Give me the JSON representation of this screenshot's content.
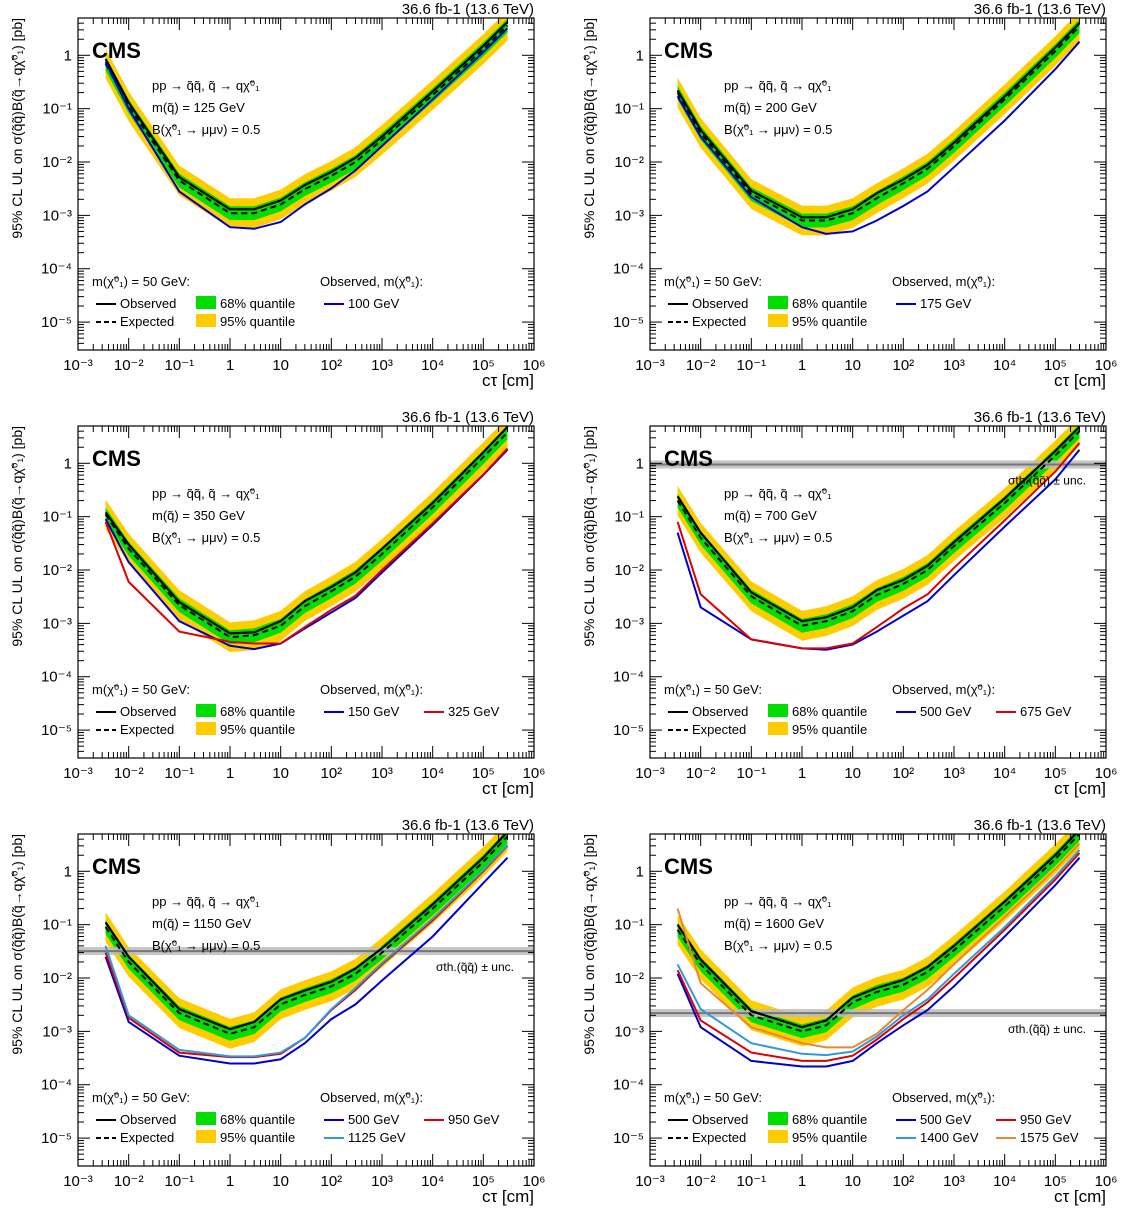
{
  "chart_data": [
    {
      "type": "line",
      "experiment_label": "CMS",
      "lumi_label": "36.6 fb-1 (13.6 TeV)",
      "ylabel": "95% CL UL on σ(q̃q̃)B(q̃→qχ̃⁰₁) [pb]",
      "xlabel": "cτ [cm]",
      "xscale": "log",
      "yscale": "log",
      "xlim": [
        0.001,
        1000000
      ],
      "ylim": [
        3e-06,
        5
      ],
      "xticks": [
        "10⁻³",
        "10⁻²",
        "10⁻¹",
        "1",
        "10",
        "10²",
        "10³",
        "10⁴",
        "10⁵",
        "10⁶"
      ],
      "yticks": [
        "10⁻⁵",
        "10⁻⁴",
        "10⁻³",
        "10⁻²",
        "10⁻¹",
        "1"
      ],
      "process_lines": [
        "pp → q̃q̃, q̃ → qχ̃⁰₁",
        "m(q̃) = 125 GeV",
        "B(χ̃⁰₁ → μμν) = 0.5"
      ],
      "legend_header_left": "m(χ̃⁰₁) = 50 GeV:",
      "legend_header_right": "Observed, m(χ̃⁰₁):",
      "legend": [
        "Observed",
        "Expected",
        "68% quantile",
        "95% quantile",
        "100 GeV"
      ],
      "x": [
        0.0035,
        0.01,
        0.1,
        1,
        3,
        10,
        30,
        100,
        300,
        1000,
        10000,
        100000,
        300000
      ],
      "expected": [
        0.7,
        0.11,
        0.0045,
        0.0011,
        0.0011,
        0.0016,
        0.0031,
        0.0055,
        0.01,
        0.026,
        0.18,
        1.3,
        3.6
      ],
      "observed": [
        0.85,
        0.13,
        0.0052,
        0.0013,
        0.0013,
        0.0019,
        0.0037,
        0.0065,
        0.012,
        0.03,
        0.21,
        1.5,
        4.2
      ],
      "series": [
        {
          "name": "100 GeV",
          "color": "#0000cc",
          "values": [
            0.75,
            0.1,
            0.0028,
            0.0006,
            0.00056,
            0.00075,
            0.0016,
            0.0032,
            0.007,
            0.02,
            0.15,
            1.15,
            3.2
          ]
        }
      ],
      "xsec_theory": null
    },
    {
      "type": "line",
      "experiment_label": "CMS",
      "lumi_label": "36.6 fb-1 (13.6 TeV)",
      "ylabel": "95% CL UL on σ(q̃q̃)B(q̃→qχ̃⁰₁) [pb]",
      "xlabel": "cτ [cm]",
      "xscale": "log",
      "yscale": "log",
      "xlim": [
        0.001,
        1000000
      ],
      "ylim": [
        3e-06,
        5
      ],
      "xticks": [
        "10⁻³",
        "10⁻²",
        "10⁻¹",
        "1",
        "10",
        "10²",
        "10³",
        "10⁴",
        "10⁵",
        "10⁶"
      ],
      "yticks": [
        "10⁻⁵",
        "10⁻⁴",
        "10⁻³",
        "10⁻²",
        "10⁻¹",
        "1"
      ],
      "process_lines": [
        "pp → q̃q̃, q̃ → qχ̃⁰₁",
        "m(q̃) = 200 GeV",
        "B(χ̃⁰₁ → μμν) = 0.5"
      ],
      "legend_header_left": "m(χ̃⁰₁) = 50 GeV:",
      "legend_header_right": "Observed, m(χ̃⁰₁):",
      "legend": [
        "Observed",
        "Expected",
        "68% quantile",
        "95% quantile",
        "175 GeV"
      ],
      "x": [
        0.0035,
        0.01,
        0.1,
        1,
        3,
        10,
        30,
        100,
        300,
        1000,
        10000,
        100000,
        300000
      ],
      "expected": [
        0.2,
        0.035,
        0.0025,
        0.0008,
        0.0008,
        0.0011,
        0.0021,
        0.004,
        0.0075,
        0.02,
        0.15,
        1.2,
        3.5
      ],
      "observed": [
        0.22,
        0.04,
        0.0029,
        0.00092,
        0.00092,
        0.0013,
        0.0026,
        0.0047,
        0.0088,
        0.023,
        0.17,
        1.4,
        4.0
      ],
      "series": [
        {
          "name": "175 GeV",
          "color": "#0000cc",
          "values": [
            0.17,
            0.03,
            0.0022,
            0.0006,
            0.00045,
            0.0005,
            0.0008,
            0.0015,
            0.0028,
            0.008,
            0.06,
            0.55,
            1.8
          ]
        }
      ],
      "xsec_theory": null
    },
    {
      "type": "line",
      "experiment_label": "CMS",
      "lumi_label": "36.6 fb-1 (13.6 TeV)",
      "ylabel": "95% CL UL on σ(q̃q̃)B(q̃→qχ̃⁰₁) [pb]",
      "xlabel": "cτ [cm]",
      "xscale": "log",
      "yscale": "log",
      "xlim": [
        0.001,
        1000000
      ],
      "ylim": [
        3e-06,
        5
      ],
      "xticks": [
        "10⁻³",
        "10⁻²",
        "10⁻¹",
        "1",
        "10",
        "10²",
        "10³",
        "10⁴",
        "10⁵",
        "10⁶"
      ],
      "yticks": [
        "10⁻⁵",
        "10⁻⁴",
        "10⁻³",
        "10⁻²",
        "10⁻¹",
        "1"
      ],
      "process_lines": [
        "pp → q̃q̃, q̃ → qχ̃⁰₁",
        "m(q̃) = 350 GeV",
        "B(χ̃⁰₁ → μμν) = 0.5"
      ],
      "legend_header_left": "m(χ̃⁰₁) = 50 GeV:",
      "legend_header_right": "Observed, m(χ̃⁰₁):",
      "legend": [
        "Observed",
        "Expected",
        "68% quantile",
        "95% quantile",
        "150 GeV",
        "325 GeV"
      ],
      "x": [
        0.0035,
        0.01,
        0.1,
        1,
        3,
        10,
        30,
        100,
        300,
        1000,
        10000,
        100000,
        300000
      ],
      "expected": [
        0.11,
        0.025,
        0.0022,
        0.00055,
        0.0006,
        0.0009,
        0.0021,
        0.004,
        0.0075,
        0.02,
        0.15,
        1.3,
        3.8
      ],
      "observed": [
        0.12,
        0.03,
        0.0025,
        0.00065,
        0.00068,
        0.0011,
        0.0026,
        0.0048,
        0.009,
        0.025,
        0.18,
        1.6,
        4.8
      ],
      "series": [
        {
          "name": "150 GeV",
          "color": "#0000cc",
          "values": [
            0.09,
            0.014,
            0.0011,
            0.00038,
            0.00033,
            0.00042,
            0.0008,
            0.0016,
            0.003,
            0.009,
            0.07,
            0.6,
            1.8
          ]
        },
        {
          "name": "325 GeV",
          "color": "#dd0000",
          "values": [
            0.08,
            0.006,
            0.0007,
            0.00045,
            0.00042,
            0.00042,
            0.00085,
            0.0018,
            0.0033,
            0.01,
            0.075,
            0.62,
            1.9
          ]
        }
      ],
      "xsec_theory": null
    },
    {
      "type": "line",
      "experiment_label": "CMS",
      "lumi_label": "36.6 fb-1 (13.6 TeV)",
      "ylabel": "95% CL UL on σ(q̃q̃)B(q̃→qχ̃⁰₁) [pb]",
      "xlabel": "cτ [cm]",
      "xscale": "log",
      "yscale": "log",
      "xlim": [
        0.001,
        1000000
      ],
      "ylim": [
        3e-06,
        5
      ],
      "xticks": [
        "10⁻³",
        "10⁻²",
        "10⁻¹",
        "1",
        "10",
        "10²",
        "10³",
        "10⁴",
        "10⁵",
        "10⁶"
      ],
      "yticks": [
        "10⁻⁵",
        "10⁻⁴",
        "10⁻³",
        "10⁻²",
        "10⁻¹",
        "1"
      ],
      "process_lines": [
        "pp → q̃q̃, q̃ → qχ̃⁰₁",
        "m(q̃) = 700 GeV",
        "B(χ̃⁰₁ → μμν) = 0.5"
      ],
      "legend_header_left": "m(χ̃⁰₁) = 50 GeV:",
      "legend_header_right": "Observed, m(χ̃⁰₁):",
      "legend": [
        "Observed",
        "Expected",
        "68% quantile",
        "95% quantile",
        "500 GeV",
        "675 GeV"
      ],
      "x": [
        0.0035,
        0.01,
        0.1,
        1,
        3,
        10,
        30,
        100,
        300,
        1000,
        10000,
        100000,
        300000
      ],
      "expected": [
        0.2,
        0.04,
        0.0032,
        0.0009,
        0.0011,
        0.0017,
        0.0034,
        0.0055,
        0.01,
        0.028,
        0.18,
        1.4,
        4.0
      ],
      "observed": [
        0.24,
        0.05,
        0.0038,
        0.0011,
        0.0013,
        0.002,
        0.0042,
        0.0065,
        0.012,
        0.033,
        0.22,
        1.7,
        4.8
      ],
      "series": [
        {
          "name": "500 GeV",
          "color": "#0000cc",
          "values": [
            0.05,
            0.002,
            0.0005,
            0.00034,
            0.00032,
            0.0004,
            0.0007,
            0.0014,
            0.0026,
            0.008,
            0.065,
            0.5,
            1.8
          ]
        },
        {
          "name": "675 GeV",
          "color": "#dd0000",
          "values": [
            0.08,
            0.0035,
            0.0005,
            0.00034,
            0.00034,
            0.00042,
            0.00085,
            0.0019,
            0.0035,
            0.011,
            0.085,
            0.7,
            2.4
          ]
        }
      ],
      "xsec_theory": {
        "value": 0.95,
        "label": "σth.(q̃q̃) ± unc."
      }
    },
    {
      "type": "line",
      "experiment_label": "CMS",
      "lumi_label": "36.6 fb-1 (13.6 TeV)",
      "ylabel": "95% CL UL on σ(q̃q̃)B(q̃→qχ̃⁰₁) [pb]",
      "xlabel": "cτ [cm]",
      "xscale": "log",
      "yscale": "log",
      "xlim": [
        0.001,
        1000000
      ],
      "ylim": [
        3e-06,
        5
      ],
      "xticks": [
        "10⁻³",
        "10⁻²",
        "10⁻¹",
        "1",
        "10",
        "10²",
        "10³",
        "10⁴",
        "10⁵",
        "10⁶"
      ],
      "yticks": [
        "10⁻⁵",
        "10⁻⁴",
        "10⁻³",
        "10⁻²",
        "10⁻¹",
        "1"
      ],
      "process_lines": [
        "pp → q̃q̃, q̃ → qχ̃⁰₁",
        "m(q̃) = 1150 GeV",
        "B(χ̃⁰₁ → μμν) = 0.5"
      ],
      "legend_header_left": "m(χ̃⁰₁) = 50 GeV:",
      "legend_header_right": "Observed, m(χ̃⁰₁):",
      "legend": [
        "Observed",
        "Expected",
        "68% quantile",
        "95% quantile",
        "500 GeV",
        "950 GeV",
        "1125 GeV"
      ],
      "x": [
        0.0035,
        0.01,
        0.1,
        1,
        3,
        10,
        30,
        100,
        300,
        1000,
        10000,
        100000,
        300000
      ],
      "expected": [
        0.09,
        0.02,
        0.0022,
        0.0009,
        0.0012,
        0.0032,
        0.0048,
        0.007,
        0.012,
        0.03,
        0.2,
        1.5,
        4.5
      ],
      "observed": [
        0.11,
        0.025,
        0.0026,
        0.0011,
        0.0015,
        0.004,
        0.0058,
        0.0085,
        0.015,
        0.036,
        0.24,
        1.8,
        5.5
      ],
      "series": [
        {
          "name": "500 GeV",
          "color": "#0000cc",
          "values": [
            0.025,
            0.0015,
            0.00035,
            0.00025,
            0.00025,
            0.0003,
            0.0006,
            0.0017,
            0.0032,
            0.009,
            0.06,
            0.6,
            1.8
          ]
        },
        {
          "name": "950 GeV",
          "color": "#dd0000",
          "values": [
            0.03,
            0.0018,
            0.0004,
            0.00033,
            0.00033,
            0.00038,
            0.00075,
            0.0025,
            0.006,
            0.018,
            0.12,
            1.0,
            3.0
          ]
        },
        {
          "name": "1125 GeV",
          "color": "#2e9bdc",
          "values": [
            0.04,
            0.002,
            0.00045,
            0.00034,
            0.00034,
            0.0004,
            0.00075,
            0.0026,
            0.0065,
            0.019,
            0.13,
            1.05,
            3.1
          ]
        }
      ],
      "xsec_theory": {
        "value": 0.032,
        "label": "σth.(q̃q̃) ± unc."
      }
    },
    {
      "type": "line",
      "experiment_label": "CMS",
      "lumi_label": "36.6 fb-1 (13.6 TeV)",
      "ylabel": "95% CL UL on σ(q̃q̃)B(q̃→qχ̃⁰₁) [pb]",
      "xlabel": "cτ [cm]",
      "xscale": "log",
      "yscale": "log",
      "xlim": [
        0.001,
        1000000
      ],
      "ylim": [
        3e-06,
        5
      ],
      "xticks": [
        "10⁻³",
        "10⁻²",
        "10⁻¹",
        "1",
        "10",
        "10²",
        "10³",
        "10⁴",
        "10⁵",
        "10⁶"
      ],
      "yticks": [
        "10⁻⁵",
        "10⁻⁴",
        "10⁻³",
        "10⁻²",
        "10⁻¹",
        "1"
      ],
      "process_lines": [
        "pp → q̃q̃, q̃ → qχ̃⁰₁",
        "m(q̃) = 1600 GeV",
        "B(χ̃⁰₁ → μμν) = 0.5"
      ],
      "legend_header_left": "m(χ̃⁰₁) = 50 GeV:",
      "legend_header_right": "Observed, m(χ̃⁰₁):",
      "legend": [
        "Observed",
        "Expected",
        "68% quantile",
        "95% quantile",
        "500 GeV",
        "950 GeV",
        "1400 GeV",
        "1575 GeV"
      ],
      "x": [
        0.0035,
        0.01,
        0.1,
        1,
        3,
        10,
        30,
        100,
        300,
        1000,
        10000,
        100000,
        300000
      ],
      "expected": [
        0.08,
        0.018,
        0.002,
        0.001,
        0.0013,
        0.0035,
        0.0055,
        0.0075,
        0.013,
        0.033,
        0.22,
        1.7,
        5.0
      ],
      "observed": [
        0.1,
        0.022,
        0.0024,
        0.0012,
        0.0016,
        0.0043,
        0.0065,
        0.0092,
        0.016,
        0.04,
        0.27,
        2.0,
        6.0
      ],
      "series": [
        {
          "name": "500 GeV",
          "color": "#0000cc",
          "values": [
            0.012,
            0.0012,
            0.00028,
            0.00022,
            0.00022,
            0.00028,
            0.0006,
            0.0013,
            0.0025,
            0.007,
            0.06,
            0.55,
            1.8
          ]
        },
        {
          "name": "950 GeV",
          "color": "#dd0000",
          "values": [
            0.014,
            0.0016,
            0.0004,
            0.00028,
            0.00028,
            0.00035,
            0.0007,
            0.0017,
            0.0035,
            0.01,
            0.08,
            0.7,
            2.2
          ]
        },
        {
          "name": "1400 GeV",
          "color": "#2e9bdc",
          "values": [
            0.018,
            0.0026,
            0.0006,
            0.00038,
            0.00036,
            0.00042,
            0.0008,
            0.002,
            0.004,
            0.012,
            0.09,
            0.8,
            2.5
          ]
        },
        {
          "name": "1575 GeV",
          "color": "#e58a2e",
          "values": [
            0.2,
            0.008,
            0.0012,
            0.0006,
            0.0005,
            0.0005,
            0.0009,
            0.0025,
            0.006,
            0.018,
            0.14,
            1.1,
            3.3
          ]
        }
      ],
      "xsec_theory": {
        "value": 0.0022,
        "label": "σth.(q̃q̃) ± unc."
      }
    }
  ]
}
